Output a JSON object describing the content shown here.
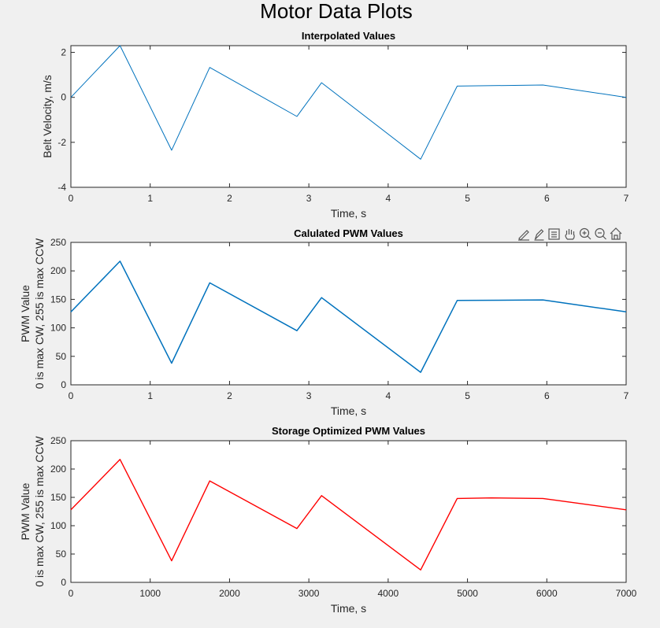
{
  "figure": {
    "title": "Motor Data Plots",
    "toolbar": [
      {
        "name": "brush-icon"
      },
      {
        "name": "data-tip-icon"
      },
      {
        "name": "legend-icon"
      },
      {
        "name": "pan-hand-icon"
      },
      {
        "name": "zoom-in-icon"
      },
      {
        "name": "zoom-out-icon"
      },
      {
        "name": "home-icon"
      }
    ]
  },
  "chart_data": [
    {
      "type": "line",
      "title": "Interpolated Values",
      "xlabel": "Time, s",
      "ylabel": [
        "Belt Velocity, m/s"
      ],
      "xlim": [
        0,
        7
      ],
      "ylim": [
        -4,
        2.3
      ],
      "xticks": [
        0,
        1,
        2,
        3,
        4,
        5,
        6,
        7
      ],
      "yticks": [
        -4,
        -2,
        0,
        2
      ],
      "color": "#0072BD",
      "series": [
        {
          "x": [
            0,
            0.62,
            1.27,
            1.75,
            2.85,
            3.16,
            4.41,
            4.87,
            5.95,
            7.0
          ],
          "y": [
            0.0,
            2.3,
            -2.35,
            1.33,
            -0.85,
            0.65,
            -2.75,
            0.5,
            0.55,
            0.0
          ]
        }
      ]
    },
    {
      "type": "line",
      "title": "Calulated PWM Values",
      "xlabel": "Time, s",
      "ylabel": [
        "PWM Value",
        "0 is max CW, 255 is max CCW"
      ],
      "xlim": [
        0,
        7
      ],
      "ylim": [
        0,
        250
      ],
      "xticks": [
        0,
        1,
        2,
        3,
        4,
        5,
        6,
        7
      ],
      "yticks": [
        0,
        50,
        100,
        150,
        200,
        250
      ],
      "color": "#0072BD",
      "series": [
        {
          "x": [
            0,
            0.62,
            1.27,
            1.75,
            2.85,
            3.16,
            4.41,
            4.87,
            5.95,
            7.0
          ],
          "y": [
            128,
            217,
            38,
            179,
            95,
            153,
            22,
            148,
            149,
            128
          ]
        }
      ]
    },
    {
      "type": "line",
      "title": "Storage Optimized PWM Values",
      "xlabel": "Time, s",
      "ylabel": [
        "PWM Value",
        "0 is max CW, 255 is max CCW"
      ],
      "xlim": [
        0,
        7000
      ],
      "ylim": [
        0,
        250
      ],
      "xticks": [
        0,
        1000,
        2000,
        3000,
        4000,
        5000,
        6000,
        7000
      ],
      "yticks": [
        0,
        50,
        100,
        150,
        200,
        250
      ],
      "color": "#FF0000",
      "series": [
        {
          "x": [
            0,
            620,
            1270,
            1750,
            2850,
            3160,
            4410,
            4870,
            5300,
            5950,
            7000
          ],
          "y": [
            128,
            217,
            38,
            179,
            95,
            153,
            22,
            148,
            149,
            148,
            128
          ]
        }
      ]
    }
  ]
}
